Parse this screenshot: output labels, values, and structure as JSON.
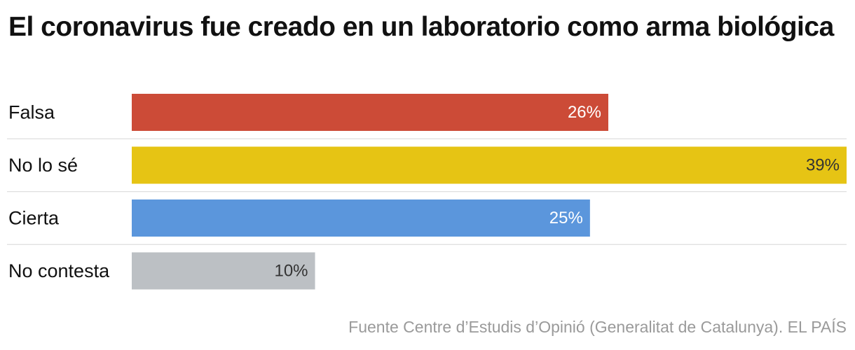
{
  "title": "El coronavirus fue creado en un laboratorio como arma biológica",
  "source": "Fuente Centre d’Estudis d’Opinió (Generalitat de Catalunya). EL PAÍS",
  "chart_data": {
    "type": "bar",
    "orientation": "horizontal",
    "title": "El coronavirus fue creado en un laboratorio como arma biológica",
    "categories": [
      "Falsa",
      "No lo sé",
      "Cierta",
      "No contesta"
    ],
    "values": [
      26,
      39,
      25,
      10
    ],
    "value_labels": [
      "26%",
      "39%",
      "25%",
      "10%"
    ],
    "unit": "%",
    "colors": [
      "#cc4b37",
      "#e6c414",
      "#5b96dc",
      "#bcc0c4"
    ],
    "label_colors": [
      "#ffffff",
      "#333333",
      "#ffffff",
      "#333333"
    ],
    "xlim": [
      0,
      39
    ],
    "xlabel": "",
    "ylabel": "",
    "grid": false,
    "legend": "none"
  }
}
